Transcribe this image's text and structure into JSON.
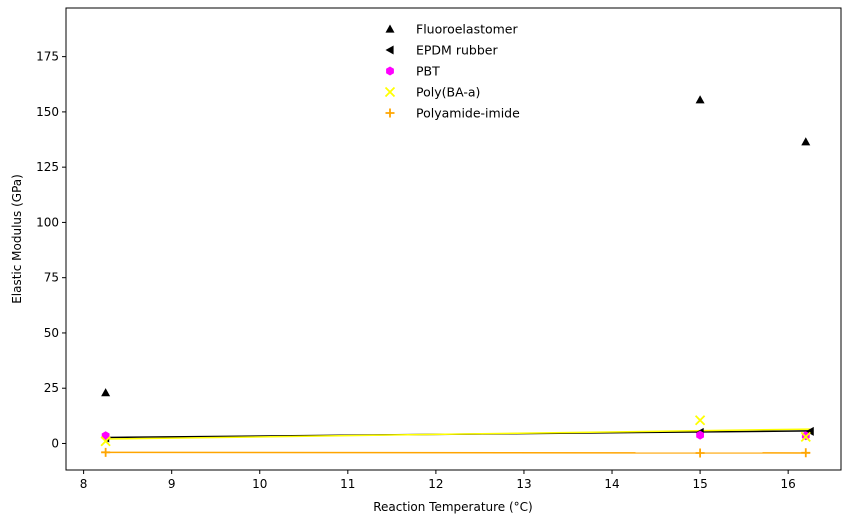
{
  "chart_data": {
    "type": "scatter",
    "title": "",
    "xlabel": "Reaction Temperature (°C)",
    "ylabel": "Elastic Modulus (GPa)",
    "xlim": [
      7.8,
      16.6
    ],
    "ylim": [
      -12,
      197
    ],
    "x_ticks": [
      8,
      9,
      10,
      11,
      12,
      13,
      14,
      15,
      16
    ],
    "y_ticks": [
      0,
      25,
      50,
      75,
      100,
      125,
      150,
      175
    ],
    "legend_position": "top-center",
    "series": [
      {
        "name": "Fluoroelastomer",
        "marker": "triangle-up",
        "color": "#000000",
        "points": [
          [
            8.25,
            23.0
          ],
          [
            15.0,
            155.5
          ],
          [
            16.2,
            136.5
          ]
        ]
      },
      {
        "name": "EPDM rubber",
        "marker": "triangle-left",
        "color": "#000000",
        "points": [
          [
            8.25,
            2.5
          ],
          [
            15.0,
            5.0
          ],
          [
            16.25,
            5.5
          ]
        ],
        "fit": [
          [
            8.25,
            2.7
          ],
          [
            16.25,
            5.7
          ]
        ]
      },
      {
        "name": "PBT",
        "marker": "hexagon",
        "color": "#ff00ff",
        "points": [
          [
            8.25,
            3.5
          ],
          [
            15.0,
            3.8
          ],
          [
            16.2,
            3.5
          ]
        ]
      },
      {
        "name": "Poly(BA-a)",
        "marker": "x",
        "color": "#ffff00",
        "points": [
          [
            8.25,
            1.0
          ],
          [
            15.0,
            10.5
          ],
          [
            16.2,
            3.0
          ]
        ],
        "fit": [
          [
            8.25,
            2.0
          ],
          [
            16.25,
            6.5
          ]
        ]
      },
      {
        "name": "Polyamide-imide",
        "marker": "plus",
        "color": "#ffa500",
        "points": [
          [
            8.25,
            -4.0
          ],
          [
            15.0,
            -4.3
          ],
          [
            16.2,
            -4.2
          ]
        ],
        "fit": [
          [
            8.25,
            -4.0
          ],
          [
            16.25,
            -4.3
          ]
        ]
      }
    ]
  }
}
